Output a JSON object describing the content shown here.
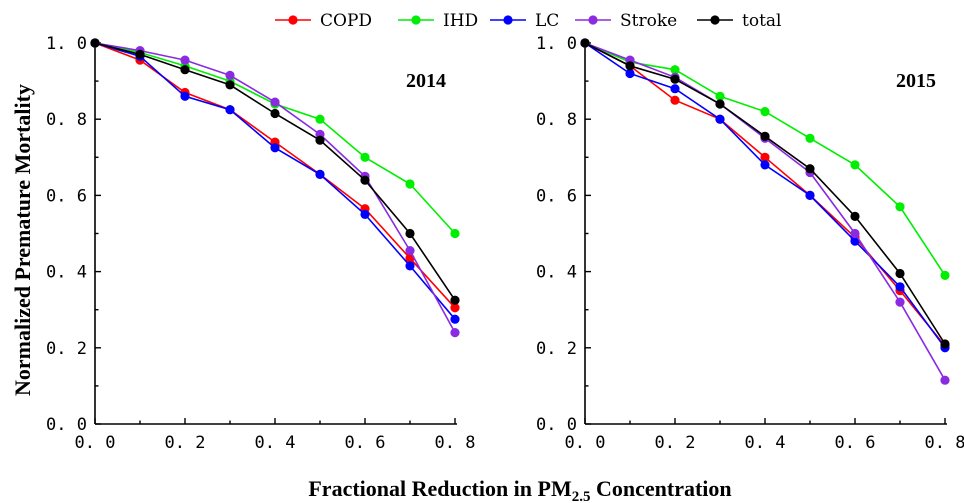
{
  "chart_data": [
    {
      "type": "line",
      "panel_label": "2014",
      "x": [
        0.0,
        0.1,
        0.2,
        0.3,
        0.4,
        0.5,
        0.6,
        0.7,
        0.8
      ],
      "xlim": [
        0.0,
        0.8
      ],
      "ylim": [
        0.0,
        1.0
      ],
      "x_ticks": [
        "0. 0",
        "0. 2",
        "0. 4",
        "0. 6",
        "0. 8"
      ],
      "x_tick_values": [
        0.0,
        0.2,
        0.4,
        0.6,
        0.8
      ],
      "y_ticks": [
        "0. 0",
        "0. 2",
        "0. 4",
        "0. 6",
        "0. 8",
        "1. 0"
      ],
      "y_tick_values": [
        0.0,
        0.2,
        0.4,
        0.6,
        0.8,
        1.0
      ],
      "series": [
        {
          "name": "COPD",
          "color": "#ff0000",
          "values": [
            1.0,
            0.955,
            0.87,
            0.825,
            0.74,
            0.655,
            0.565,
            0.435,
            0.305
          ]
        },
        {
          "name": "IHD",
          "color": "#00ee00",
          "values": [
            1.0,
            0.975,
            0.94,
            0.9,
            0.84,
            0.8,
            0.7,
            0.63,
            0.5
          ]
        },
        {
          "name": "LC",
          "color": "#0000ff",
          "values": [
            1.0,
            0.965,
            0.86,
            0.825,
            0.725,
            0.655,
            0.55,
            0.415,
            0.275
          ]
        },
        {
          "name": "Stroke",
          "color": "#8a2be2",
          "values": [
            1.0,
            0.98,
            0.955,
            0.915,
            0.845,
            0.76,
            0.65,
            0.455,
            0.24
          ]
        },
        {
          "name": "total",
          "color": "#000000",
          "values": [
            1.0,
            0.97,
            0.93,
            0.89,
            0.815,
            0.745,
            0.64,
            0.5,
            0.325
          ]
        }
      ]
    },
    {
      "type": "line",
      "panel_label": "2015",
      "x": [
        0.0,
        0.1,
        0.2,
        0.3,
        0.4,
        0.5,
        0.6,
        0.7,
        0.8
      ],
      "xlim": [
        0.0,
        0.8
      ],
      "ylim": [
        0.0,
        1.0
      ],
      "x_ticks": [
        "0. 0",
        "0. 2",
        "0. 4",
        "0. 6",
        "0. 8"
      ],
      "x_tick_values": [
        0.0,
        0.2,
        0.4,
        0.6,
        0.8
      ],
      "y_ticks": [
        "0. 0",
        "0. 2",
        "0. 4",
        "0. 6",
        "0. 8",
        "1. 0"
      ],
      "y_tick_values": [
        0.0,
        0.2,
        0.4,
        0.6,
        0.8,
        1.0
      ],
      "series": [
        {
          "name": "COPD",
          "color": "#ff0000",
          "values": [
            1.0,
            0.94,
            0.85,
            0.8,
            0.7,
            0.6,
            0.49,
            0.35,
            0.205
          ]
        },
        {
          "name": "IHD",
          "color": "#00ee00",
          "values": [
            1.0,
            0.95,
            0.93,
            0.86,
            0.82,
            0.75,
            0.68,
            0.57,
            0.39
          ]
        },
        {
          "name": "LC",
          "color": "#0000ff",
          "values": [
            1.0,
            0.92,
            0.88,
            0.8,
            0.68,
            0.6,
            0.48,
            0.36,
            0.2
          ]
        },
        {
          "name": "Stroke",
          "color": "#8a2be2",
          "values": [
            1.0,
            0.955,
            0.91,
            0.84,
            0.75,
            0.66,
            0.5,
            0.32,
            0.115
          ]
        },
        {
          "name": "total",
          "color": "#000000",
          "values": [
            1.0,
            0.94,
            0.905,
            0.84,
            0.755,
            0.67,
            0.545,
            0.395,
            0.21
          ]
        }
      ]
    }
  ],
  "legend": {
    "placement": "top-center",
    "items": [
      {
        "name": "COPD",
        "color": "#ff0000"
      },
      {
        "name": "IHD",
        "color": "#00ee00"
      },
      {
        "name": "LC",
        "color": "#0000ff"
      },
      {
        "name": "Stroke",
        "color": "#8a2be2"
      },
      {
        "name": "total",
        "color": "#000000"
      }
    ]
  },
  "ylabel": "Normalized Premature Mortality",
  "xlabel": {
    "prefix": "Fractional Reduction in PM",
    "subscript": "2.5",
    "suffix": " Concentration"
  }
}
